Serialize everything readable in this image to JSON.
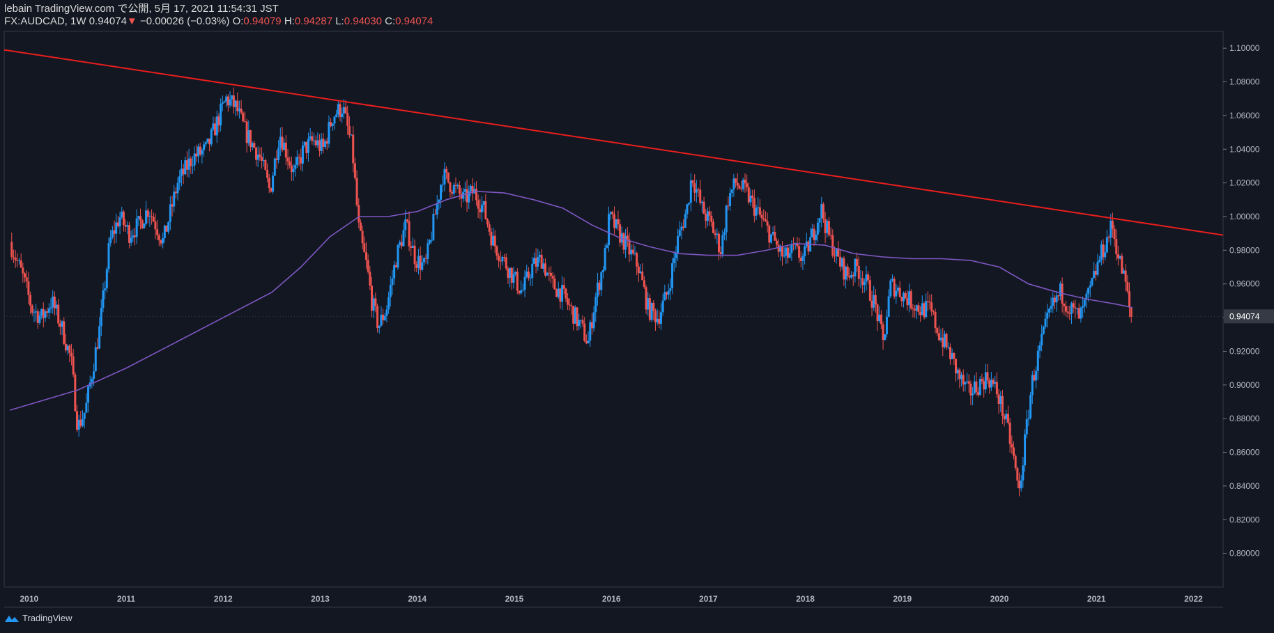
{
  "header": {
    "published": "lebain TradingView.com で公開, 5月 17, 2021 11:54:31 JST",
    "symbol": "FX:AUDCAD, 1W",
    "last": "0.94074",
    "change_arrow": "▼",
    "change": "−0.00026 (−0.03%)",
    "o_label": "O:",
    "o": "0.94079",
    "h_label": "H:",
    "h": "0.94287",
    "l_label": "L:",
    "l": "0.94030",
    "c_label": "C:",
    "c": "0.94074"
  },
  "footer": {
    "brand": "TradingView",
    "icon": "tradingview-logo-icon"
  },
  "colors": {
    "background": "#131722",
    "up": "#2196f3",
    "down": "#ef5350",
    "moving_average": "#7e57c2",
    "trendline": "#e91e1e",
    "price_label_bg": "#363a45"
  },
  "chart_data": {
    "type": "candlestick",
    "symbol": "FX:AUDCAD",
    "interval": "1W",
    "ylim": [
      0.78,
      1.11
    ],
    "y_ticks": [
      "1.10000",
      "1.08000",
      "1.06000",
      "1.04000",
      "1.02000",
      "1.00000",
      "0.98000",
      "0.96000",
      "0.94000",
      "0.92000",
      "0.90000",
      "0.88000",
      "0.86000",
      "0.84000",
      "0.82000",
      "0.80000"
    ],
    "x_ticks": [
      "2010",
      "2011",
      "2012",
      "2013",
      "2014",
      "2015",
      "2016",
      "2017",
      "2018",
      "2019",
      "2020",
      "2021",
      "2022"
    ],
    "current_price_label": "0.94074",
    "price_path": [
      [
        2009.82,
        0.985
      ],
      [
        2009.95,
        0.965
      ],
      [
        2010.05,
        0.945
      ],
      [
        2010.15,
        0.94
      ],
      [
        2010.25,
        0.95
      ],
      [
        2010.35,
        0.935
      ],
      [
        2010.45,
        0.915
      ],
      [
        2010.52,
        0.875
      ],
      [
        2010.6,
        0.885
      ],
      [
        2010.75,
        0.935
      ],
      [
        2010.85,
        0.985
      ],
      [
        2010.95,
        1.0
      ],
      [
        2011.05,
        0.99
      ],
      [
        2011.15,
        0.995
      ],
      [
        2011.25,
        1.005
      ],
      [
        2011.4,
        0.985
      ],
      [
        2011.55,
        1.02
      ],
      [
        2011.7,
        1.035
      ],
      [
        2011.85,
        1.04
      ],
      [
        2011.95,
        1.055
      ],
      [
        2012.05,
        1.07
      ],
      [
        2012.15,
        1.065
      ],
      [
        2012.25,
        1.05
      ],
      [
        2012.4,
        1.035
      ],
      [
        2012.5,
        1.015
      ],
      [
        2012.6,
        1.05
      ],
      [
        2012.75,
        1.025
      ],
      [
        2012.85,
        1.04
      ],
      [
        2012.95,
        1.045
      ],
      [
        2013.05,
        1.04
      ],
      [
        2013.15,
        1.06
      ],
      [
        2013.25,
        1.065
      ],
      [
        2013.35,
        1.04
      ],
      [
        2013.42,
        0.99
      ],
      [
        2013.5,
        0.97
      ],
      [
        2013.55,
        0.95
      ],
      [
        2013.62,
        0.935
      ],
      [
        2013.7,
        0.945
      ],
      [
        2013.8,
        0.975
      ],
      [
        2013.9,
        0.995
      ],
      [
        2014.0,
        0.975
      ],
      [
        2014.1,
        0.97
      ],
      [
        2014.2,
        1.0
      ],
      [
        2014.28,
        1.025
      ],
      [
        2014.35,
        1.02
      ],
      [
        2014.5,
        1.01
      ],
      [
        2014.6,
        1.015
      ],
      [
        2014.7,
        1.005
      ],
      [
        2014.8,
        0.985
      ],
      [
        2014.9,
        0.975
      ],
      [
        2015.0,
        0.965
      ],
      [
        2015.1,
        0.955
      ],
      [
        2015.2,
        0.97
      ],
      [
        2015.3,
        0.975
      ],
      [
        2015.4,
        0.96
      ],
      [
        2015.5,
        0.955
      ],
      [
        2015.6,
        0.945
      ],
      [
        2015.7,
        0.935
      ],
      [
        2015.78,
        0.925
      ],
      [
        2015.85,
        0.95
      ],
      [
        2015.95,
        0.975
      ],
      [
        2016.0,
        1.0
      ],
      [
        2016.1,
        0.99
      ],
      [
        2016.2,
        0.98
      ],
      [
        2016.3,
        0.97
      ],
      [
        2016.4,
        0.945
      ],
      [
        2016.5,
        0.94
      ],
      [
        2016.6,
        0.955
      ],
      [
        2016.7,
        0.985
      ],
      [
        2016.8,
        1.005
      ],
      [
        2016.85,
        1.025
      ],
      [
        2016.95,
        1.005
      ],
      [
        2017.05,
        0.995
      ],
      [
        2017.15,
        0.98
      ],
      [
        2017.22,
        1.01
      ],
      [
        2017.3,
        1.02
      ],
      [
        2017.4,
        1.015
      ],
      [
        2017.5,
        1.005
      ],
      [
        2017.6,
        0.995
      ],
      [
        2017.7,
        0.985
      ],
      [
        2017.8,
        0.975
      ],
      [
        2017.9,
        0.98
      ],
      [
        2018.0,
        0.975
      ],
      [
        2018.1,
        0.99
      ],
      [
        2018.18,
        1.005
      ],
      [
        2018.25,
        0.99
      ],
      [
        2018.35,
        0.975
      ],
      [
        2018.45,
        0.965
      ],
      [
        2018.55,
        0.97
      ],
      [
        2018.65,
        0.96
      ],
      [
        2018.75,
        0.945
      ],
      [
        2018.82,
        0.925
      ],
      [
        2018.9,
        0.96
      ],
      [
        2019.0,
        0.955
      ],
      [
        2019.1,
        0.95
      ],
      [
        2019.2,
        0.945
      ],
      [
        2019.3,
        0.945
      ],
      [
        2019.4,
        0.93
      ],
      [
        2019.5,
        0.92
      ],
      [
        2019.6,
        0.905
      ],
      [
        2019.7,
        0.895
      ],
      [
        2019.8,
        0.9
      ],
      [
        2019.9,
        0.905
      ],
      [
        2020.0,
        0.895
      ],
      [
        2020.1,
        0.875
      ],
      [
        2020.17,
        0.855
      ],
      [
        2020.22,
        0.835
      ],
      [
        2020.28,
        0.865
      ],
      [
        2020.35,
        0.9
      ],
      [
        2020.45,
        0.925
      ],
      [
        2020.55,
        0.945
      ],
      [
        2020.65,
        0.955
      ],
      [
        2020.75,
        0.945
      ],
      [
        2020.85,
        0.94
      ],
      [
        2020.95,
        0.955
      ],
      [
        2021.05,
        0.975
      ],
      [
        2021.12,
        0.985
      ],
      [
        2021.18,
        0.995
      ],
      [
        2021.25,
        0.975
      ],
      [
        2021.32,
        0.96
      ],
      [
        2021.37,
        0.94074
      ]
    ],
    "moving_average": [
      [
        2009.8,
        0.885
      ],
      [
        2010.5,
        0.897
      ],
      [
        2011.0,
        0.91
      ],
      [
        2011.5,
        0.925
      ],
      [
        2012.0,
        0.94
      ],
      [
        2012.5,
        0.955
      ],
      [
        2012.8,
        0.97
      ],
      [
        2013.1,
        0.988
      ],
      [
        2013.4,
        1.0
      ],
      [
        2013.7,
        1.0
      ],
      [
        2014.0,
        1.003
      ],
      [
        2014.3,
        1.01
      ],
      [
        2014.6,
        1.015
      ],
      [
        2014.9,
        1.014
      ],
      [
        2015.2,
        1.01
      ],
      [
        2015.5,
        1.005
      ],
      [
        2015.8,
        0.995
      ],
      [
        2016.1,
        0.987
      ],
      [
        2016.4,
        0.982
      ],
      [
        2016.7,
        0.978
      ],
      [
        2017.0,
        0.977
      ],
      [
        2017.3,
        0.977
      ],
      [
        2017.6,
        0.98
      ],
      [
        2017.9,
        0.984
      ],
      [
        2018.2,
        0.983
      ],
      [
        2018.5,
        0.978
      ],
      [
        2018.8,
        0.976
      ],
      [
        2019.1,
        0.975
      ],
      [
        2019.4,
        0.975
      ],
      [
        2019.7,
        0.974
      ],
      [
        2020.0,
        0.97
      ],
      [
        2020.3,
        0.96
      ],
      [
        2020.6,
        0.955
      ],
      [
        2020.9,
        0.951
      ],
      [
        2021.2,
        0.948
      ],
      [
        2021.37,
        0.946
      ]
    ],
    "trendline": {
      "start": [
        2009.82,
        1.099
      ],
      "end": [
        2022.2,
        0.989
      ]
    }
  }
}
